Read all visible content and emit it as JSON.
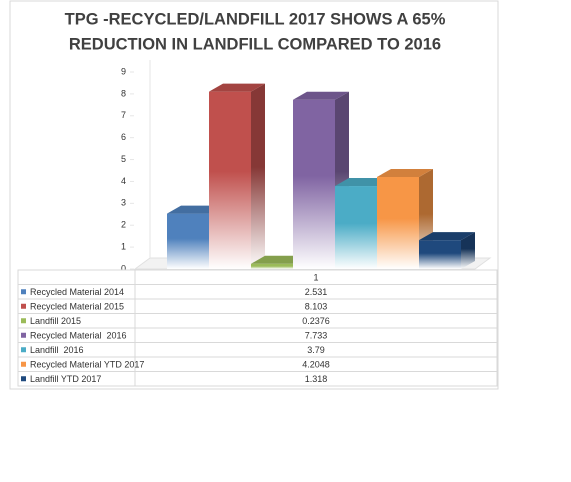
{
  "chart_data": {
    "type": "bar3d",
    "title": [
      "TPG -RECYCLED/LANDFILL 2017 SHOWS A 65%",
      "REDUCTION IN LANDFILL COMPARED TO 2016"
    ],
    "categories": [
      "1"
    ],
    "series": [
      {
        "name": "Recycled Material 2014",
        "color": "#4f81bd",
        "values": [
          2.531
        ]
      },
      {
        "name": "Recycled Material 2015",
        "color": "#c0504d",
        "values": [
          8.103
        ]
      },
      {
        "name": "Landfill 2015",
        "color": "#9bbb59",
        "values": [
          0.2376
        ]
      },
      {
        "name": "Recycled Material  2016",
        "color": "#8064a2",
        "values": [
          7.733
        ]
      },
      {
        "name": "Landfill  2016",
        "color": "#4bacc6",
        "values": [
          3.79
        ]
      },
      {
        "name": "Recycled Material YTD 2017",
        "color": "#f79646",
        "values": [
          4.2048
        ]
      },
      {
        "name": "Landfill YTD 2017",
        "color": "#1f497d",
        "values": [
          1.318
        ]
      }
    ],
    "ylim": [
      0,
      9
    ],
    "yticks": [
      0,
      1,
      2,
      3,
      4,
      5,
      6,
      7,
      8,
      9
    ],
    "grid": false
  }
}
